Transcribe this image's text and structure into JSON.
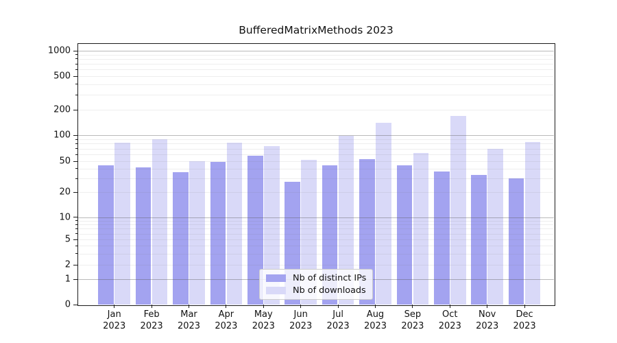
{
  "figure": {
    "title": "BufferedMatrixMethods 2023",
    "background_color": "#ffffff"
  },
  "chart_data": {
    "type": "bar",
    "title": "BufferedMatrixMethods 2023",
    "categories": [
      "Jan",
      "Feb",
      "Mar",
      "Apr",
      "May",
      "Jun",
      "Jul",
      "Aug",
      "Sep",
      "Oct",
      "Nov",
      "Dec"
    ],
    "x_tick_second_line": "2023",
    "series": [
      {
        "name": "Nb of distinct IPs",
        "color": "#a3a3f0",
        "values": [
          44,
          42,
          36,
          49,
          58,
          27,
          44,
          53,
          44,
          37,
          33,
          30
        ]
      },
      {
        "name": "Nb of downloads",
        "color": "#d9d9f8",
        "values": [
          82,
          90,
          50,
          82,
          75,
          52,
          98,
          140,
          62,
          170,
          70,
          84
        ]
      }
    ],
    "y_axis": {
      "scale": "symlog",
      "ticks": [
        0,
        1,
        2,
        5,
        10,
        20,
        50,
        100,
        200,
        500,
        1000
      ],
      "minor_ticks": [
        3,
        4,
        6,
        7,
        8,
        9,
        30,
        40,
        60,
        70,
        80,
        90,
        300,
        400,
        600,
        700,
        800,
        900
      ],
      "ylim": [
        0,
        1200
      ]
    },
    "grid": true,
    "legend": {
      "position": "lower center",
      "entries": [
        "Nb of distinct IPs",
        "Nb of downloads"
      ]
    }
  }
}
